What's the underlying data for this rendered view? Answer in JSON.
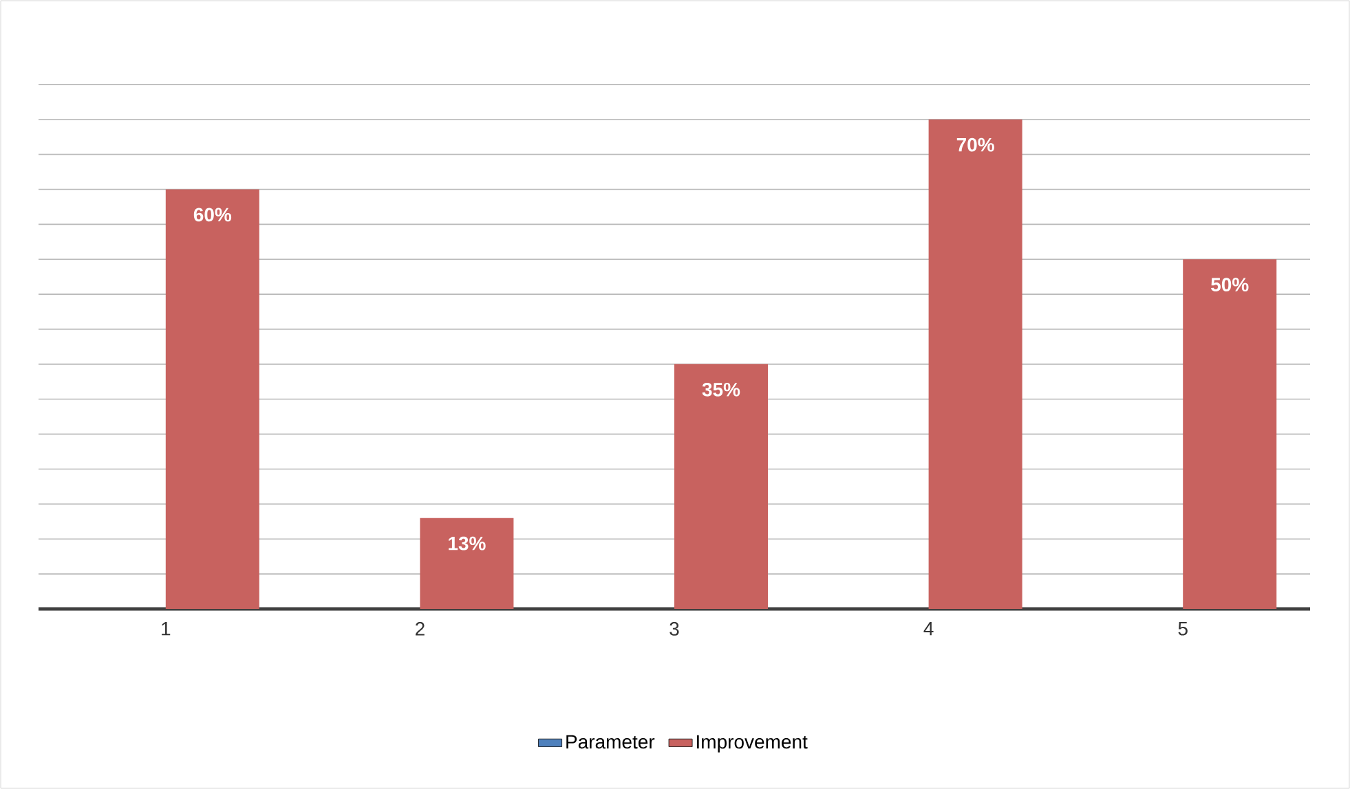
{
  "chart_data": {
    "type": "bar",
    "categories": [
      "1",
      "2",
      "3",
      "4",
      "5"
    ],
    "series": [
      {
        "name": "Parameter",
        "color": "#4f81bd",
        "values": [
          null,
          null,
          null,
          null,
          null
        ]
      },
      {
        "name": "Improvement",
        "color": "#c8625f",
        "values": [
          60,
          13,
          35,
          70,
          50
        ],
        "value_labels": [
          "60%",
          "13%",
          "35%",
          "70%",
          "50%"
        ]
      }
    ],
    "grid": "y",
    "legend": "bottom",
    "tick_labels": "x"
  }
}
